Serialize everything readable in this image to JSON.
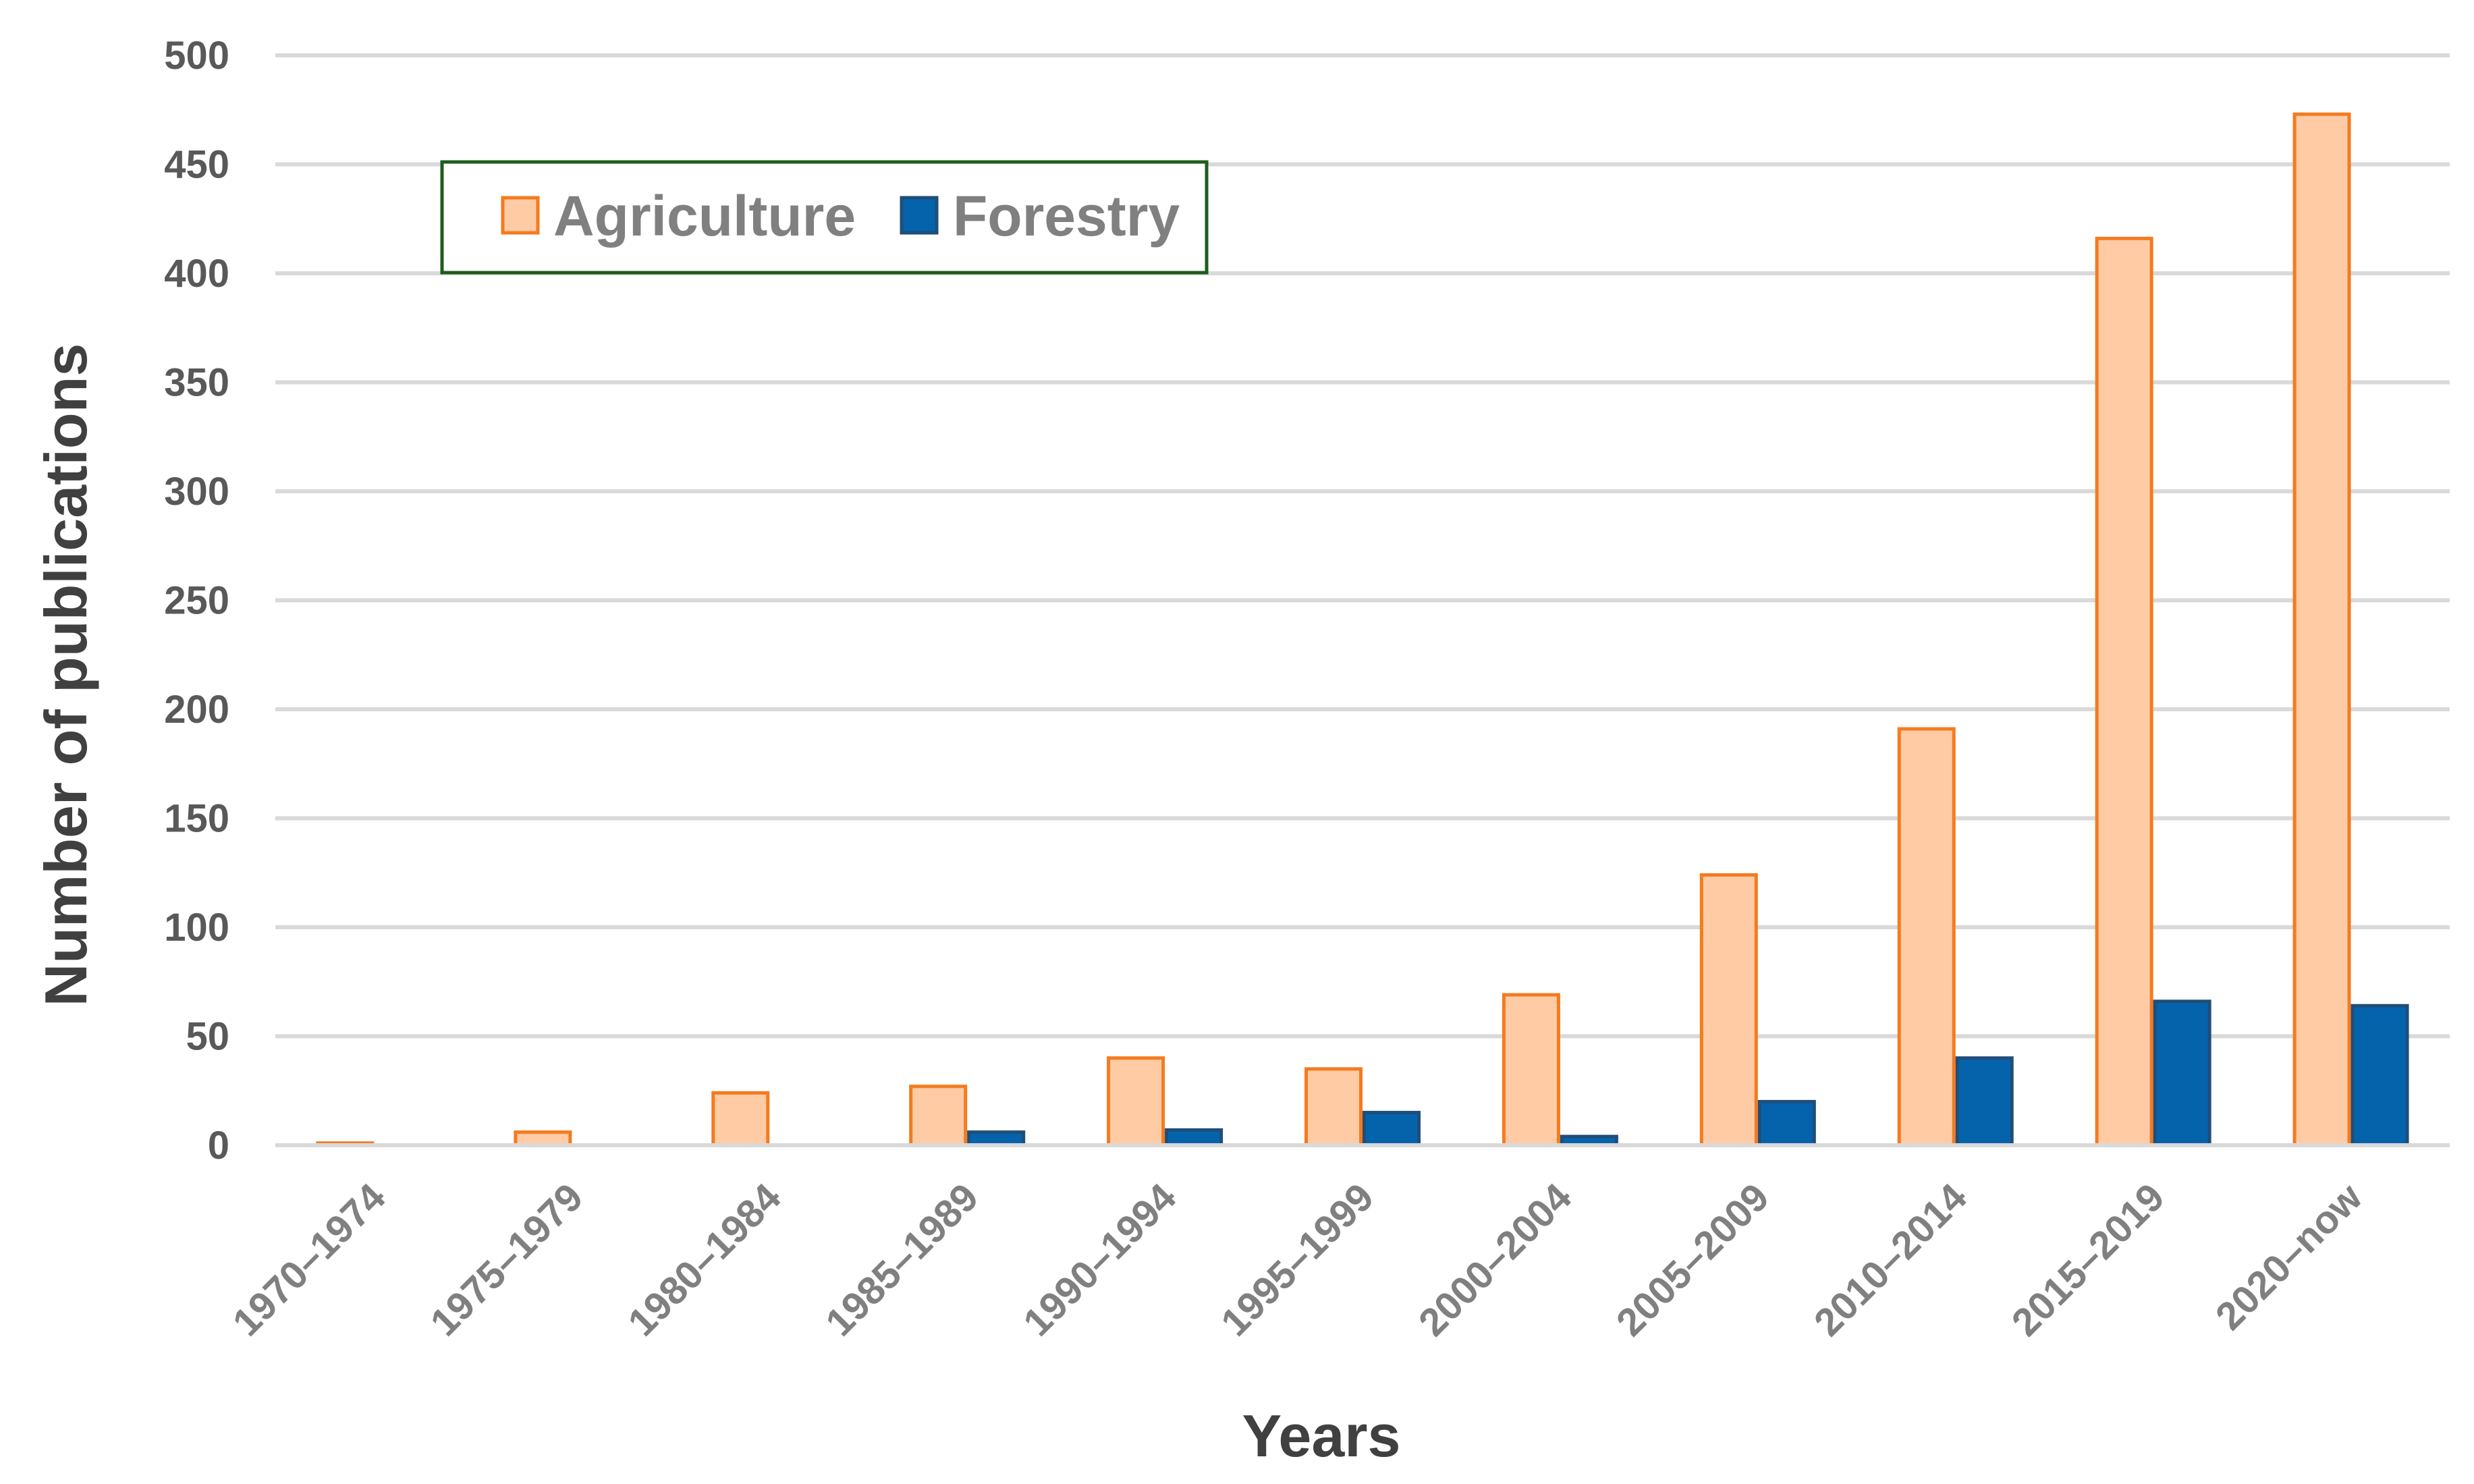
{
  "chart_data": {
    "type": "bar",
    "title": "",
    "xlabel": "Years",
    "ylabel": "Number of publications",
    "ylim": [
      0,
      500
    ],
    "yticks": [
      0,
      50,
      100,
      150,
      200,
      250,
      300,
      350,
      400,
      450,
      500
    ],
    "grid": true,
    "legend_position": "top-left",
    "categories": [
      "1970–1974",
      "1975–1979",
      "1980–1984",
      "1985–1989",
      "1990–1994",
      "1995–1999",
      "2000–2004",
      "2005–2009",
      "2010–2014",
      "2015–2019",
      "2020–now"
    ],
    "series": [
      {
        "name": "Agriculture",
        "fill": "#FFCBA4",
        "stroke": "#F47B20",
        "values": [
          1,
          6,
          24,
          27,
          40,
          35,
          69,
          124,
          191,
          416,
          473
        ]
      },
      {
        "name": "Forestry",
        "fill": "#0563AC",
        "stroke": "#1F4E79",
        "values": [
          0,
          0,
          0,
          6,
          7,
          15,
          4,
          20,
          40,
          66,
          64
        ]
      }
    ]
  }
}
